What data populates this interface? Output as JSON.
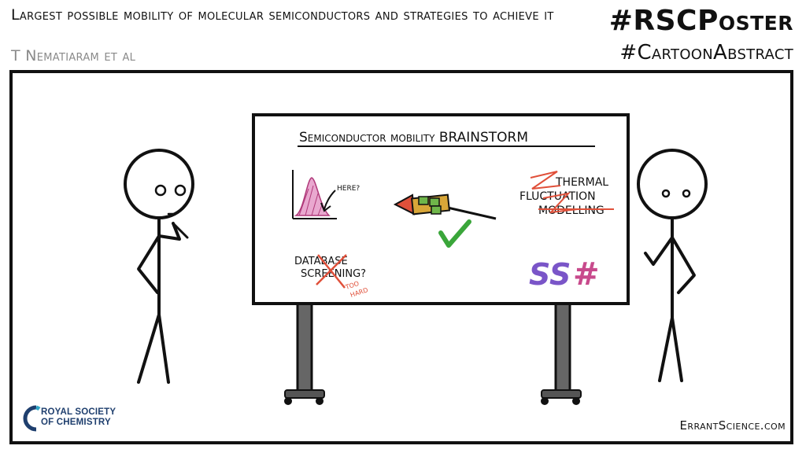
{
  "header": {
    "title": "Largest possible mobility of molecular semiconductors and strategies to achieve it",
    "authors": "T Nematiaram et al",
    "hashtag_primary": "#RSCPoster",
    "hashtag_secondary": "#CartoonAbstract"
  },
  "whiteboard": {
    "heading": "Semiconductor mobility BRAINSTORM",
    "plot_note": "HERE?",
    "right_note": [
      "THERMAL",
      "FLUCTUATION",
      "MODELLING"
    ],
    "database_note": [
      "DATABASE",
      "SCREENING?"
    ],
    "too_hard_note": [
      "TOO",
      "HARD"
    ],
    "symbol_ss": "SS",
    "symbol_hash": "#"
  },
  "footer": {
    "logo_text": [
      "ROYAL SOCIETY",
      "OF CHEMISTRY"
    ],
    "site": "ErrantScience.com"
  },
  "colors": {
    "ink": "#111111",
    "red": "#e0503a",
    "green": "#3aa63a",
    "purple": "#7a55c8",
    "pink": "#c84a8c",
    "rsc_blue": "#1f3f6e",
    "rsc_accent": "#2ea6c8",
    "gray": "#8a8a8a"
  }
}
